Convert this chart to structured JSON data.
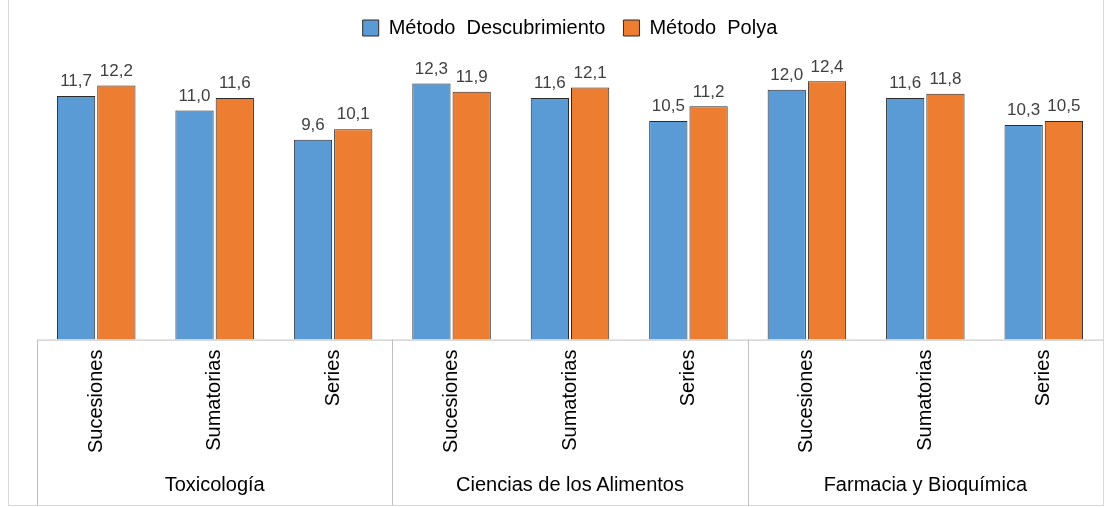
{
  "chart_data": {
    "type": "bar",
    "categories": [
      "Sucesiones",
      "Sumatorias",
      "Series",
      "Sucesiones",
      "Sumatorias",
      "Series",
      "Sucesiones",
      "Sumatorias",
      "Series"
    ],
    "series": [
      {
        "name": "Método  Descubrimiento",
        "color": "#5b9bd5",
        "values": [
          11.7,
          11.0,
          9.6,
          12.3,
          11.6,
          10.5,
          12.0,
          11.6,
          10.3
        ],
        "value_labels": [
          "11,7",
          "11,0",
          "9,6",
          "12,3",
          "11,6",
          "10,5",
          "12,0",
          "11,6",
          "10,3"
        ]
      },
      {
        "name": "Método  Polya",
        "color": "#ed7d31",
        "values": [
          12.2,
          11.6,
          10.1,
          11.9,
          12.1,
          11.2,
          12.4,
          11.8,
          10.5
        ],
        "value_labels": [
          "12,2",
          "11,6",
          "10,1",
          "11,9",
          "12,1",
          "11,2",
          "12,4",
          "11,8",
          "10,5"
        ]
      }
    ],
    "annotations": [
      "Toxicología",
      "Ciencias de los Alimentos",
      "Farmacia y Bioquímica"
    ],
    "legend": "top",
    "grid": false
  }
}
